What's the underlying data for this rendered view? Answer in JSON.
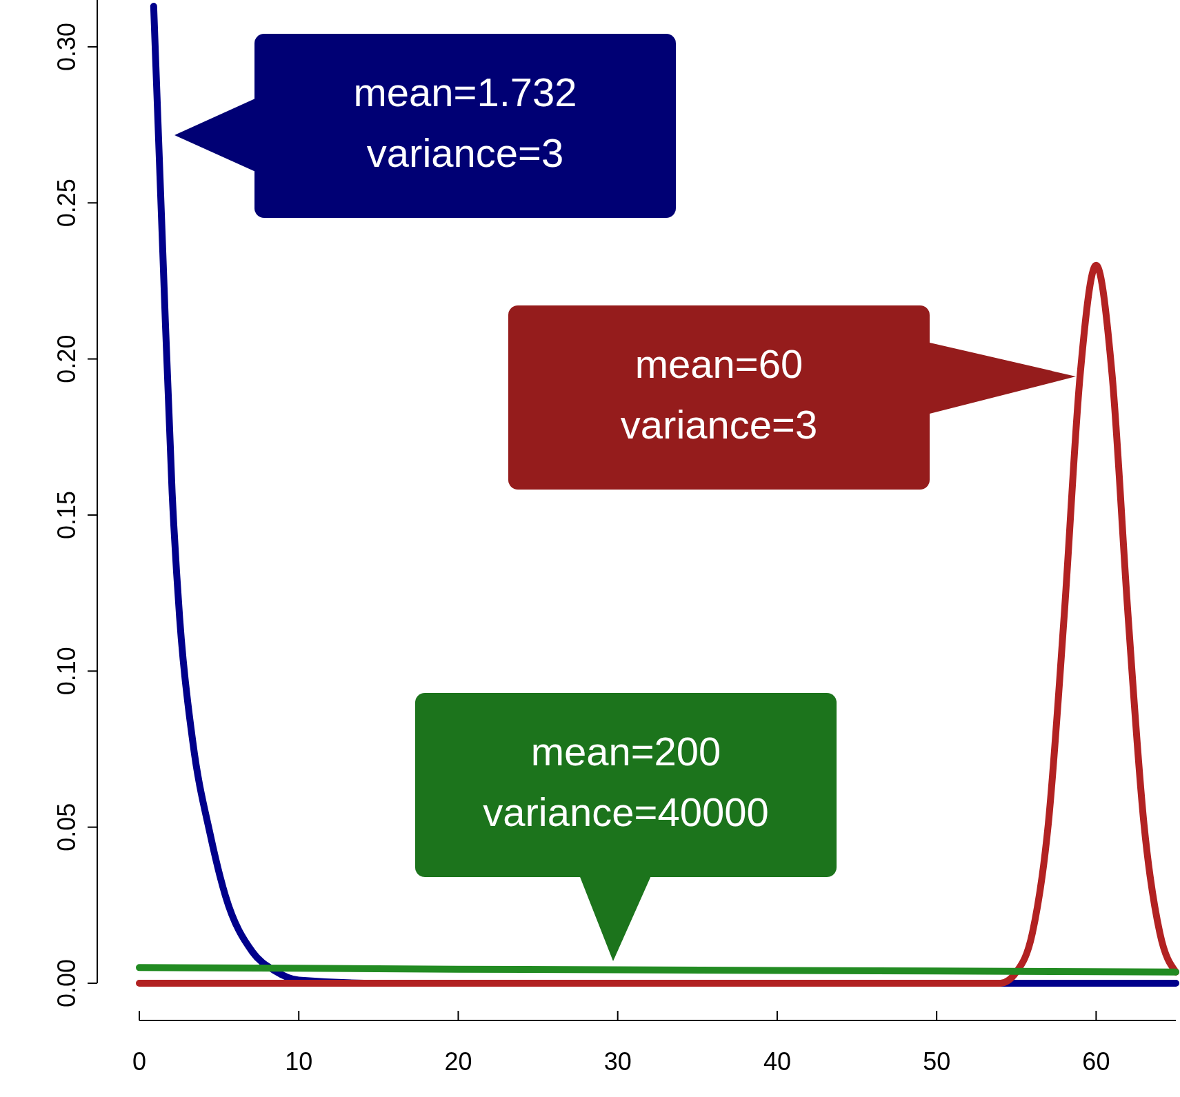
{
  "chart_data": {
    "type": "line",
    "xlim": [
      0,
      65
    ],
    "ylim": [
      0,
      0.315
    ],
    "xticks": [
      0,
      10,
      20,
      30,
      40,
      50,
      60
    ],
    "yticks": [
      {
        "value": 0,
        "label": "0.00"
      },
      {
        "value": 0.05,
        "label": "0.05"
      },
      {
        "value": 0.1,
        "label": "0.10"
      },
      {
        "value": 0.15,
        "label": "0.15"
      },
      {
        "value": 0.2,
        "label": "0.20"
      },
      {
        "value": 0.25,
        "label": "0.25"
      },
      {
        "value": 0.3,
        "label": "0.30"
      }
    ],
    "grid": false,
    "marker": "none",
    "line_style": "solid",
    "series": [
      {
        "color": "#00008b",
        "x": [
          0.9,
          1.46,
          2.06,
          2.53,
          3.35,
          4.45,
          5.4,
          7.1,
          8.5,
          10,
          15,
          30,
          50,
          65
        ],
        "values": [
          0.313,
          0.236,
          0.157,
          0.117,
          0.0775,
          0.0476,
          0.028,
          0.01,
          0.004,
          0.001,
          0,
          0,
          0,
          0
        ]
      },
      {
        "color": "#b22222",
        "x": [
          0,
          20,
          40,
          54,
          55,
          56,
          57,
          58,
          59,
          60,
          61,
          62,
          63,
          64,
          65
        ],
        "values": [
          0,
          0,
          0,
          0,
          0.0036,
          0.016,
          0.051,
          0.118,
          0.195,
          0.23,
          0.195,
          0.118,
          0.051,
          0.016,
          0.0036
        ]
      },
      {
        "color": "#228b22",
        "x": [
          0,
          10,
          20,
          30,
          40,
          50,
          60,
          65
        ],
        "values": [
          0.005,
          0.0048,
          0.0045,
          0.0043,
          0.0041,
          0.0039,
          0.0037,
          0.0036
        ]
      }
    ],
    "annotations": [
      "mean=1.732\nvariance=3",
      "mean=60\nvariance=3",
      "mean=200\nvariance=40000"
    ]
  }
}
